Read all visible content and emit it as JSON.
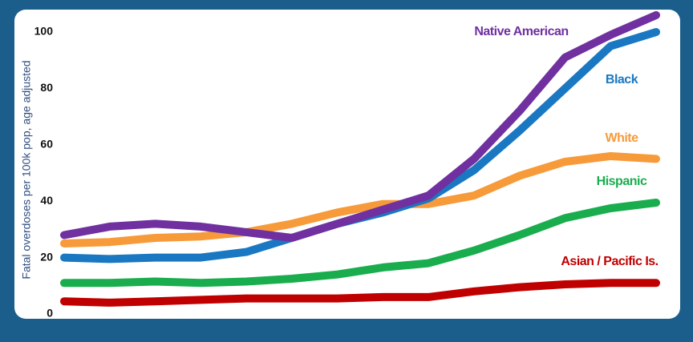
{
  "chart_data": {
    "type": "line",
    "y_label": "Fatal overdoses per 100k pop, age adjusted",
    "categories": [
      null,
      null,
      null,
      null,
      null,
      null,
      null,
      null,
      null,
      null,
      null,
      null,
      null,
      null
    ],
    "series": [
      {
        "name": "Native American",
        "color": "#7030a0",
        "values": [
          28,
          31,
          32,
          31,
          29,
          27,
          32,
          37,
          42,
          55,
          72,
          91,
          99,
          106
        ]
      },
      {
        "name": "Black",
        "color": "#1a78c2",
        "values": [
          20,
          19.5,
          20,
          20,
          22,
          27,
          32,
          36,
          41,
          51,
          65,
          80,
          95,
          100
        ]
      },
      {
        "name": "White",
        "color": "#f79a3a",
        "values": [
          25,
          25.5,
          27,
          27.5,
          29,
          32,
          36,
          39,
          39,
          42,
          49,
          54,
          56,
          55
        ]
      },
      {
        "name": "Hispanic",
        "color": "#1aad4e",
        "values": [
          11,
          11,
          11.5,
          11,
          11.5,
          12.5,
          14,
          16.5,
          18,
          22.5,
          28,
          34,
          37.5,
          39.5
        ]
      },
      {
        "name": "Asian / Pacific Is.",
        "color": "#c00000",
        "values": [
          4.5,
          4,
          4.5,
          5,
          5.5,
          5.5,
          5.5,
          6,
          6,
          8,
          9.5,
          10.5,
          11,
          11
        ]
      }
    ],
    "ylim": [
      0,
      107
    ],
    "yticks": [
      0,
      20,
      40,
      60,
      80,
      100
    ]
  }
}
